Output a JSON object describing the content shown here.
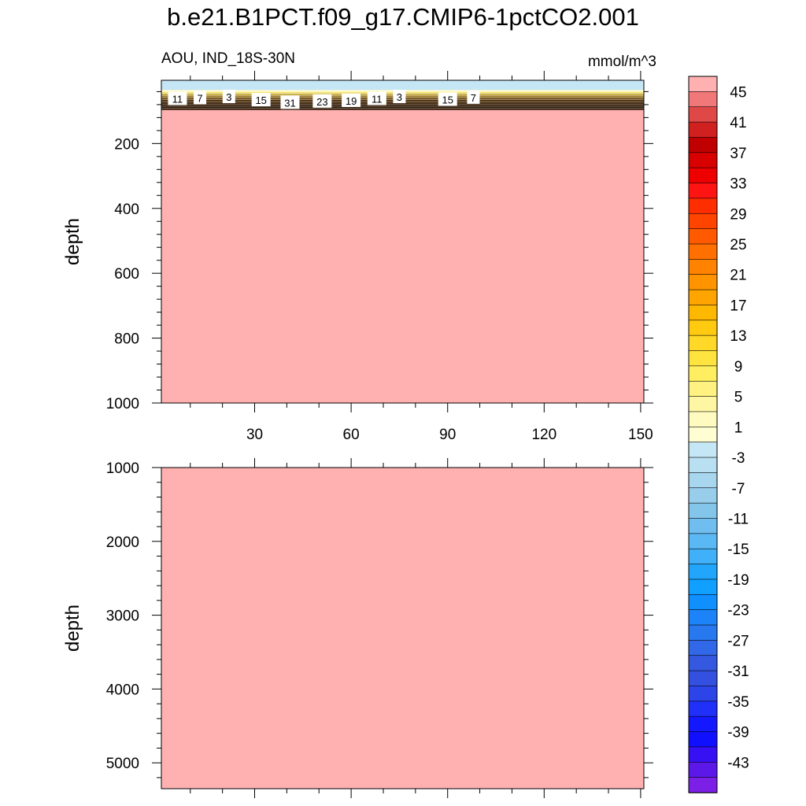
{
  "title": "b.e21.B1PCT.f09_g17.CMIP6-1pctCO2.001",
  "subtitle_left": "AOU, IND_18S-30N",
  "subtitle_right": "mmol/m^3",
  "colors": {
    "deep_fill": "#ffb0b0",
    "surface_negative": "#c5e6f4",
    "contour_band_dark": "#3a2500"
  },
  "chart_data": [
    {
      "type": "heatmap",
      "panel": "upper",
      "ylabel": "depth",
      "xlabel": "",
      "xlim": [
        1,
        151
      ],
      "ylim": [
        1000,
        5
      ],
      "xticks": [
        30,
        60,
        90,
        120,
        150
      ],
      "xtick_labels": [
        "30",
        "60",
        "90",
        "120",
        "150"
      ],
      "yticks": [
        200,
        400,
        600,
        800,
        1000
      ],
      "ytick_labels": [
        "200",
        "400",
        "600",
        "800",
        "1000"
      ],
      "surface_layer": {
        "depth_top": 5,
        "depth_bottom": 35,
        "value": -2
      },
      "gradient_zone": {
        "depth_top": 35,
        "depth_bottom": 95,
        "value_range": [
          1,
          45
        ]
      },
      "background_value": 47,
      "contour_labels": [
        {
          "x": 6,
          "depth": 62,
          "text": "11"
        },
        {
          "x": 13,
          "depth": 60,
          "text": "7"
        },
        {
          "x": 22,
          "depth": 56,
          "text": "3"
        },
        {
          "x": 32,
          "depth": 66,
          "text": "15"
        },
        {
          "x": 41,
          "depth": 74,
          "text": "31"
        },
        {
          "x": 51,
          "depth": 70,
          "text": "23"
        },
        {
          "x": 60,
          "depth": 68,
          "text": "19"
        },
        {
          "x": 68,
          "depth": 62,
          "text": "11"
        },
        {
          "x": 75,
          "depth": 56,
          "text": "3"
        },
        {
          "x": 90,
          "depth": 64,
          "text": "15"
        },
        {
          "x": 98,
          "depth": 58,
          "text": "7"
        }
      ]
    },
    {
      "type": "heatmap",
      "panel": "lower",
      "ylabel": "depth",
      "xlabel": "",
      "xlim": [
        1,
        151
      ],
      "ylim": [
        5350,
        1000
      ],
      "xticks": [
        30,
        60,
        90,
        120,
        150
      ],
      "yticks": [
        1000,
        2000,
        3000,
        4000,
        5000
      ],
      "ytick_labels": [
        "1000",
        "2000",
        "3000",
        "4000",
        "5000"
      ],
      "background_value": 47
    }
  ],
  "colorbar": {
    "levels": [
      -47,
      -45,
      -43,
      -41,
      -39,
      -37,
      -35,
      -33,
      -31,
      -29,
      -27,
      -25,
      -23,
      -21,
      -19,
      -17,
      -15,
      -13,
      -11,
      -9,
      -7,
      -5,
      -3,
      -1,
      1,
      3,
      5,
      7,
      9,
      11,
      13,
      15,
      17,
      19,
      21,
      23,
      25,
      27,
      29,
      31,
      33,
      35,
      37,
      39,
      41,
      43,
      45,
      47
    ],
    "labels": [
      "45",
      "41",
      "37",
      "33",
      "29",
      "25",
      "21",
      "17",
      "13",
      "9",
      "5",
      "1",
      "-3",
      "-7",
      "-11",
      "-15",
      "-19",
      "-23",
      "-27",
      "-31",
      "-35",
      "-39",
      "-43"
    ],
    "label_values": [
      45,
      41,
      37,
      33,
      29,
      25,
      21,
      17,
      13,
      9,
      5,
      1,
      -3,
      -7,
      -11,
      -15,
      -19,
      -23,
      -27,
      -31,
      -35,
      -39,
      -43
    ],
    "colors_top_to_bottom": [
      "#ffb0b0",
      "#f07878",
      "#e04848",
      "#d02020",
      "#c00000",
      "#d80000",
      "#ee0000",
      "#ff1414",
      "#ff2e00",
      "#ff4400",
      "#ff5a00",
      "#ff7000",
      "#ff8200",
      "#ff9400",
      "#ffa400",
      "#ffb800",
      "#ffca10",
      "#ffd828",
      "#ffe440",
      "#ffee60",
      "#fff280",
      "#fff6a4",
      "#fffac0",
      "#fffed2",
      "#c5e6f4",
      "#b8e0f0",
      "#a8d6ee",
      "#98ceec",
      "#84c6ea",
      "#70bef0",
      "#5ab8f4",
      "#40b0f8",
      "#22a6fc",
      "#10a0ff",
      "#1090ff",
      "#1c84f8",
      "#2878f0",
      "#3068e8",
      "#3458e0",
      "#3450e0",
      "#2c44e8",
      "#2030f8",
      "#1418ff",
      "#1010ff",
      "#3810f4",
      "#5c18e8",
      "#7c20e8"
    ]
  }
}
